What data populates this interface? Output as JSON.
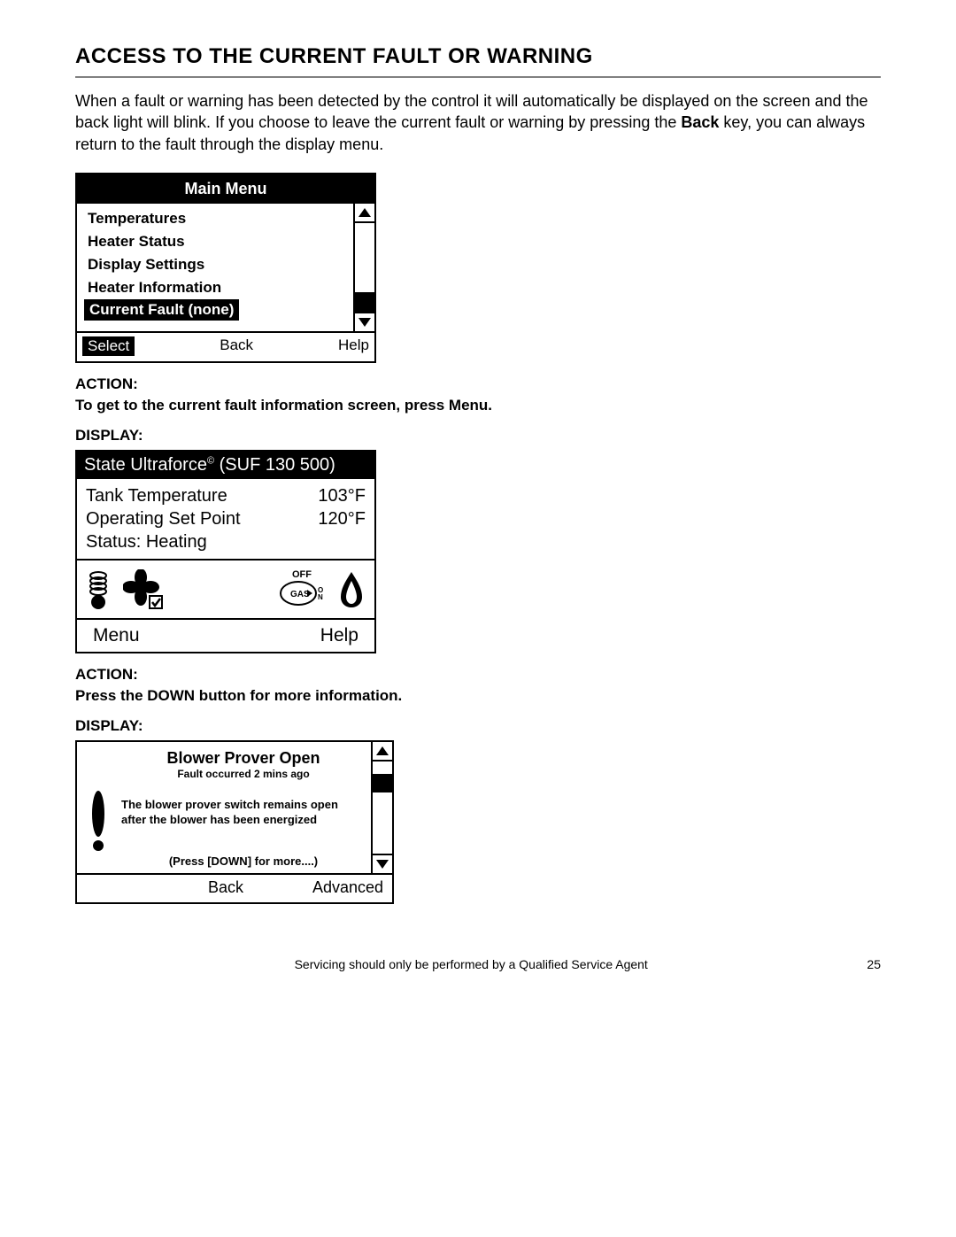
{
  "page": {
    "title": "ACCESS TO THE CURRENT FAULT OR WARNING",
    "intro_pre": "When a fault or warning has been detected by the control it will automatically be displayed on the screen and the back light will blink. If you choose to leave the current fault or warning by pressing the ",
    "intro_bold": "Back",
    "intro_post": " key, you can always return to the fault through the display menu."
  },
  "screen1": {
    "header": "Main Menu",
    "items": [
      "Temperatures",
      "Heater Status",
      "Display Settings",
      "Heater Information",
      "Current Fault (none)"
    ],
    "selected_index": 4,
    "footer": {
      "select": "Select",
      "back": "Back",
      "help": "Help"
    },
    "scroll": {
      "thumb_top_pct": 78,
      "thumb_height_pct": 22
    }
  },
  "step1": {
    "action_label": "ACTION:",
    "action_text": "To get to the current fault information screen, press Menu.",
    "display_label": "DISPLAY:"
  },
  "screen2": {
    "header_pre": "State Ultraforce",
    "header_sup": "©",
    "header_post": " (SUF 130 500)",
    "rows": [
      {
        "label": "Tank Temperature",
        "value": "103°F"
      },
      {
        "label": "Operating Set Point",
        "value": "120°F"
      },
      {
        "label": "Status: Heating",
        "value": ""
      }
    ],
    "gas_off": "OFF",
    "gas_label": "GAS",
    "gas_on": "ON",
    "footer": {
      "menu": "Menu",
      "help": "Help"
    }
  },
  "step2": {
    "action_label": "ACTION:",
    "action_text": "Press the DOWN button for more information.",
    "display_label": "DISPLAY:"
  },
  "screen3": {
    "title": "Blower Prover Open",
    "subtitle": "Fault occurred 2 mins ago",
    "desc": "The blower prover switch remains open after the blower has been energized",
    "more": "(Press [DOWN] for more....)",
    "footer": {
      "back": "Back",
      "advanced": "Advanced"
    },
    "scroll": {
      "thumb_top_pct": 14,
      "thumb_height_pct": 20
    }
  },
  "footer": {
    "note": "Servicing should only be performed by a Qualified Service Agent",
    "page": "25"
  }
}
